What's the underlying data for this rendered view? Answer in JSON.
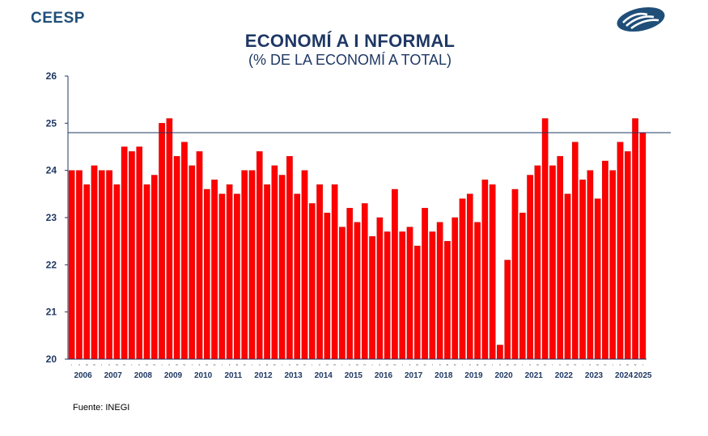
{
  "header": {
    "brand": "CEESP",
    "title": "ECONOMÍ A I NFORMAL",
    "subtitle": "(% DE LA ECONOMÍ A TOTAL)",
    "logo_icon": "ceesp-logo-icon"
  },
  "footer": {
    "source": "Fuente: INEGI"
  },
  "chart_data": {
    "type": "bar",
    "title": "ECONOMÍ A I NFORMAL",
    "subtitle": "(% DE LA ECONOMÍ A TOTAL)",
    "ylim": [
      20,
      26
    ],
    "yticks": [
      "20",
      "21",
      "22",
      "23",
      "24",
      "25",
      "26"
    ],
    "bar_color": "#ff0000",
    "bar_stroke": "#c00000",
    "reference_line": {
      "value": 24.8,
      "color": "#1f3864"
    },
    "quarter_labels": [
      "I",
      "II",
      "III",
      "IV"
    ],
    "years": [
      "2006",
      "2007",
      "2008",
      "2009",
      "2010",
      "2011",
      "2012",
      "2013",
      "2014",
      "2015",
      "2016",
      "2017",
      "2018",
      "2019",
      "2020",
      "2021",
      "2022",
      "2023",
      "2024",
      "2025"
    ],
    "values": [
      24.0,
      24.0,
      23.7,
      24.1,
      24.0,
      24.0,
      23.7,
      24.5,
      24.4,
      24.5,
      23.7,
      23.9,
      25.0,
      25.1,
      24.3,
      24.6,
      24.1,
      24.4,
      23.6,
      23.8,
      23.5,
      23.7,
      23.5,
      24.0,
      24.0,
      24.4,
      23.7,
      24.1,
      23.9,
      24.3,
      23.5,
      24.0,
      23.3,
      23.7,
      23.1,
      23.7,
      22.8,
      23.2,
      22.9,
      23.3,
      22.6,
      23.0,
      22.7,
      23.6,
      22.7,
      22.8,
      22.4,
      23.2,
      22.7,
      22.9,
      22.5,
      23.0,
      23.4,
      23.5,
      22.9,
      23.8,
      23.7,
      20.3,
      22.1,
      23.6,
      23.1,
      23.9,
      24.1,
      25.1,
      24.1,
      24.3,
      23.5,
      24.6,
      23.8,
      24.0,
      23.4,
      24.2,
      24.0,
      24.6,
      24.4,
      25.1,
      24.8
    ]
  }
}
